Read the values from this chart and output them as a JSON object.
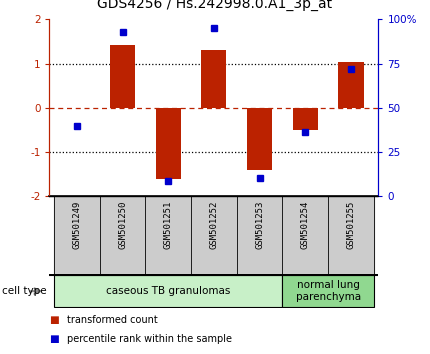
{
  "title": "GDS4256 / Hs.242998.0.A1_3p_at",
  "samples": [
    "GSM501249",
    "GSM501250",
    "GSM501251",
    "GSM501252",
    "GSM501253",
    "GSM501254",
    "GSM501255"
  ],
  "red_values": [
    0.0,
    1.42,
    -1.6,
    1.3,
    -1.4,
    -0.5,
    1.05
  ],
  "blue_values_left": [
    -0.4,
    1.72,
    -1.65,
    1.8,
    -1.58,
    -0.55,
    0.88
  ],
  "ylim": [
    -2,
    2
  ],
  "y2_ticks": [
    0,
    25,
    50,
    75,
    100
  ],
  "y2_tick_labels": [
    "0",
    "25",
    "50",
    "75",
    "100%"
  ],
  "y_ticks": [
    -2,
    -1,
    0,
    1,
    2
  ],
  "dotted_lines_black": [
    -1,
    1
  ],
  "dotted_line_red": 0,
  "cell_type_groups": [
    {
      "label": "caseous TB granulomas",
      "start": 0,
      "end": 4,
      "color": "#c8f0c8"
    },
    {
      "label": "normal lung\nparenchyma",
      "start": 5,
      "end": 6,
      "color": "#90d890"
    }
  ],
  "red_color": "#bb2200",
  "blue_color": "#0000cc",
  "bar_width": 0.55,
  "legend_red_label": "transformed count",
  "legend_blue_label": "percentile rank within the sample",
  "cell_type_label": "cell type",
  "tick_label_area_color": "#cccccc",
  "title_fontsize": 10,
  "tick_fontsize": 7.5,
  "sample_fontsize": 6.5,
  "legend_fontsize": 7,
  "cell_type_fontsize": 7.5
}
